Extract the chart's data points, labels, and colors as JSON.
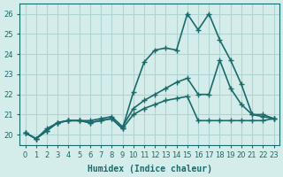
{
  "xlabel": "Humidex (Indice chaleur)",
  "ylabel": "",
  "background_color": "#d4ecea",
  "grid_color": "#b0d4d4",
  "line_color": "#1a6b6b",
  "xlim": [
    -0.5,
    23.5
  ],
  "ylim": [
    19.5,
    26.5
  ],
  "xticks": [
    0,
    1,
    2,
    3,
    4,
    5,
    6,
    7,
    8,
    9,
    10,
    11,
    12,
    13,
    14,
    15,
    16,
    17,
    18,
    19,
    20,
    21,
    22,
    23
  ],
  "yticks": [
    20,
    21,
    22,
    23,
    24,
    25,
    26
  ],
  "line1_x": [
    0,
    1,
    2,
    3,
    4,
    5,
    6,
    7,
    8,
    9,
    10,
    11,
    12,
    13,
    14,
    15,
    16,
    17,
    18,
    19,
    20,
    21,
    22,
    23
  ],
  "line1_y": [
    20.1,
    19.8,
    20.2,
    20.6,
    20.7,
    20.7,
    20.6,
    20.7,
    20.8,
    20.3,
    22.1,
    23.6,
    24.2,
    24.3,
    24.2,
    26.0,
    25.2,
    26.0,
    24.7,
    23.7,
    22.5,
    21.0,
    20.9,
    20.8
  ],
  "line2_x": [
    0,
    1,
    2,
    3,
    4,
    5,
    6,
    7,
    8,
    9,
    10,
    11,
    12,
    13,
    14,
    15,
    16,
    17,
    18,
    19,
    20,
    21,
    22,
    23
  ],
  "line2_y": [
    20.1,
    19.8,
    20.2,
    20.6,
    20.7,
    20.7,
    20.6,
    20.7,
    20.8,
    20.3,
    21.0,
    21.3,
    21.5,
    21.7,
    21.8,
    21.9,
    20.7,
    20.7,
    20.7,
    20.7,
    20.7,
    20.7,
    20.7,
    20.8
  ],
  "line3_x": [
    0,
    1,
    2,
    3,
    4,
    5,
    6,
    7,
    8,
    9,
    10,
    11,
    12,
    13,
    14,
    15,
    16,
    17,
    18,
    19,
    20,
    21,
    22,
    23
  ],
  "line3_y": [
    20.1,
    19.8,
    20.3,
    20.6,
    20.7,
    20.7,
    20.7,
    20.8,
    20.9,
    20.4,
    21.3,
    21.7,
    22.0,
    22.3,
    22.6,
    22.8,
    22.0,
    22.0,
    23.7,
    22.3,
    21.5,
    21.0,
    21.0,
    20.8
  ],
  "marker": "+",
  "markersize": 5,
  "linewidth": 1.2,
  "title_fontsize": 7,
  "label_fontsize": 7,
  "tick_fontsize": 6
}
